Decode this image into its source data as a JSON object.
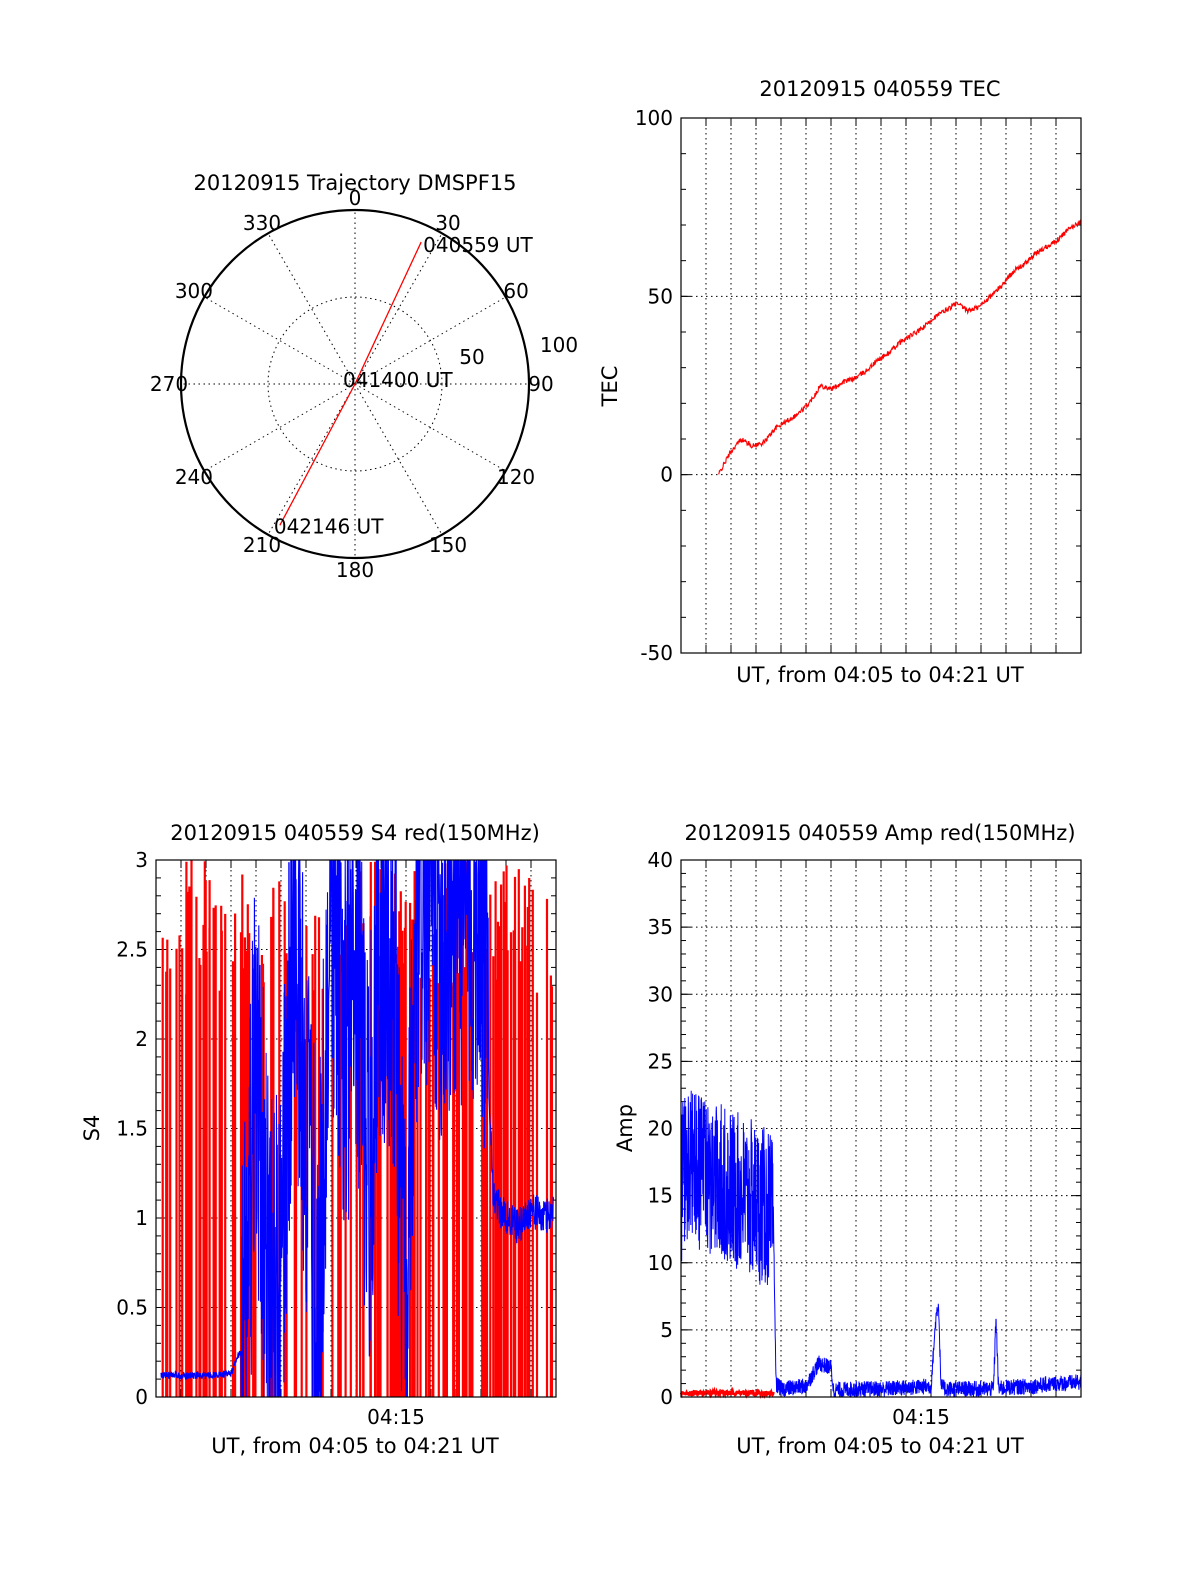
{
  "chart_data": [
    {
      "id": "polar",
      "type": "polar",
      "title": "20120915 Trajectory DMSPF15",
      "angle_labels": [
        "0",
        "30",
        "60",
        "90",
        "120",
        "150",
        "180",
        "210",
        "240",
        "270",
        "300",
        "330"
      ],
      "radial_max": 100,
      "radial_ticks": [
        50,
        100
      ],
      "radial_tick_labels": [
        "50",
        "100"
      ],
      "trajectory": {
        "color": "#ff0000",
        "start": {
          "label": "040559 UT",
          "azimuth_deg": 25,
          "zenith_deg": 90
        },
        "middle": {
          "label": "041400 UT",
          "azimuth_deg": 0,
          "zenith_deg": 0
        },
        "end": {
          "label": "042146 UT",
          "azimuth_deg": 208,
          "zenith_deg": 92
        }
      }
    },
    {
      "id": "tec",
      "type": "line",
      "title": "20120915 040559 TEC",
      "xlabel": "UT, from 04:05 to 04:21 UT",
      "ylabel": "TEC",
      "ylim": [
        -50,
        100
      ],
      "yticks": [
        "-50",
        "0",
        "50",
        "100"
      ],
      "xlim_minutes": [
        0,
        16
      ],
      "x_tick_labels": [],
      "series": [
        {
          "color": "#ff0000",
          "x_minutes": [
            0,
            0.5,
            1,
            1.5,
            2,
            2.5,
            3,
            3.5,
            4,
            4.5,
            5,
            5.5,
            6,
            6.5,
            7,
            7.5,
            8,
            8.5,
            9,
            9.5,
            10,
            10.5,
            11,
            11.5,
            12,
            12.5,
            13,
            13.5,
            14,
            14.5,
            15,
            15.5,
            16
          ],
          "values": [
            0,
            6,
            10,
            8,
            9,
            13,
            15,
            17,
            20,
            25,
            24,
            26,
            27,
            29,
            32,
            34,
            37,
            39,
            41,
            44,
            46,
            48,
            46,
            47,
            50,
            53,
            57,
            59,
            62,
            64,
            66,
            69,
            71
          ]
        }
      ]
    },
    {
      "id": "s4",
      "type": "line",
      "title": "20120915 040559 S4 red(150MHz)",
      "xlabel": "UT, from 04:05 to 04:21 UT",
      "ylabel": "S4",
      "ylim": [
        0,
        3
      ],
      "yticks": [
        "0",
        "0.5",
        "1",
        "1.5",
        "2",
        "2.5",
        "3"
      ],
      "xlim_minutes": [
        0,
        16
      ],
      "x_tick_labels": [
        {
          "label": "04:15",
          "minute": 9.6
        }
      ],
      "series": [
        {
          "color": "#0000ff",
          "x_minutes": [
            0.2,
            1,
            2,
            3,
            3.5,
            4,
            4.5,
            5,
            5.5,
            6,
            6.5,
            7,
            7.5,
            8,
            8.5,
            9,
            9.5,
            10,
            10.5,
            11,
            11.5,
            12,
            12.5,
            13,
            13.5,
            14,
            14.5,
            15,
            15.5,
            16
          ],
          "values": [
            0.12,
            0.12,
            0.12,
            0.13,
            0.3,
            1.8,
            0.6,
            0.5,
            2.8,
            1.5,
            0.4,
            2.9,
            1.9,
            2.6,
            1.2,
            2.7,
            2.4,
            0.3,
            2.8,
            2.9,
            2.5,
            2.8,
            2.7,
            2.9,
            1.1,
            1.0,
            0.95,
            1.05,
            1.0,
            1.05
          ]
        },
        {
          "color": "#ff0000",
          "values_range": [
            0,
            3
          ]
        }
      ]
    },
    {
      "id": "amp",
      "type": "line",
      "title": "20120915 040559 Amp red(150MHz)",
      "xlabel": "UT, from 04:05 to 04:21 UT",
      "ylabel": "Amp",
      "ylim": [
        0,
        40
      ],
      "yticks": [
        "0",
        "5",
        "10",
        "15",
        "20",
        "25",
        "30",
        "35",
        "40"
      ],
      "xlim_minutes": [
        0,
        16
      ],
      "x_tick_labels": [
        {
          "label": "04:15",
          "minute": 9.6
        }
      ],
      "series": [
        {
          "color": "#0000ff",
          "x_minutes": [
            0,
            0.5,
            1,
            1.5,
            2,
            2.5,
            3,
            3.5,
            3.7,
            3.8,
            4,
            5,
            5.5,
            6,
            6.1,
            7,
            8,
            9,
            10,
            10.2,
            10.3,
            10.4,
            10.6,
            11,
            12,
            12.5,
            12.6,
            12.7,
            13,
            14,
            15,
            16
          ],
          "values": [
            16,
            17,
            16,
            16,
            15.5,
            15,
            14.5,
            14,
            13,
            1,
            0.6,
            0.8,
            2.5,
            2.2,
            0.5,
            0.6,
            0.6,
            0.7,
            0.8,
            6,
            7,
            0.8,
            0.6,
            0.6,
            0.6,
            0.6,
            6,
            0.6,
            0.7,
            0.8,
            1.0,
            1.1
          ]
        },
        {
          "color": "#ff0000",
          "x_minutes": [
            0,
            1,
            2,
            3,
            3.7
          ],
          "values": [
            0.3,
            0.3,
            0.3,
            0.3,
            0.3
          ]
        }
      ]
    }
  ]
}
